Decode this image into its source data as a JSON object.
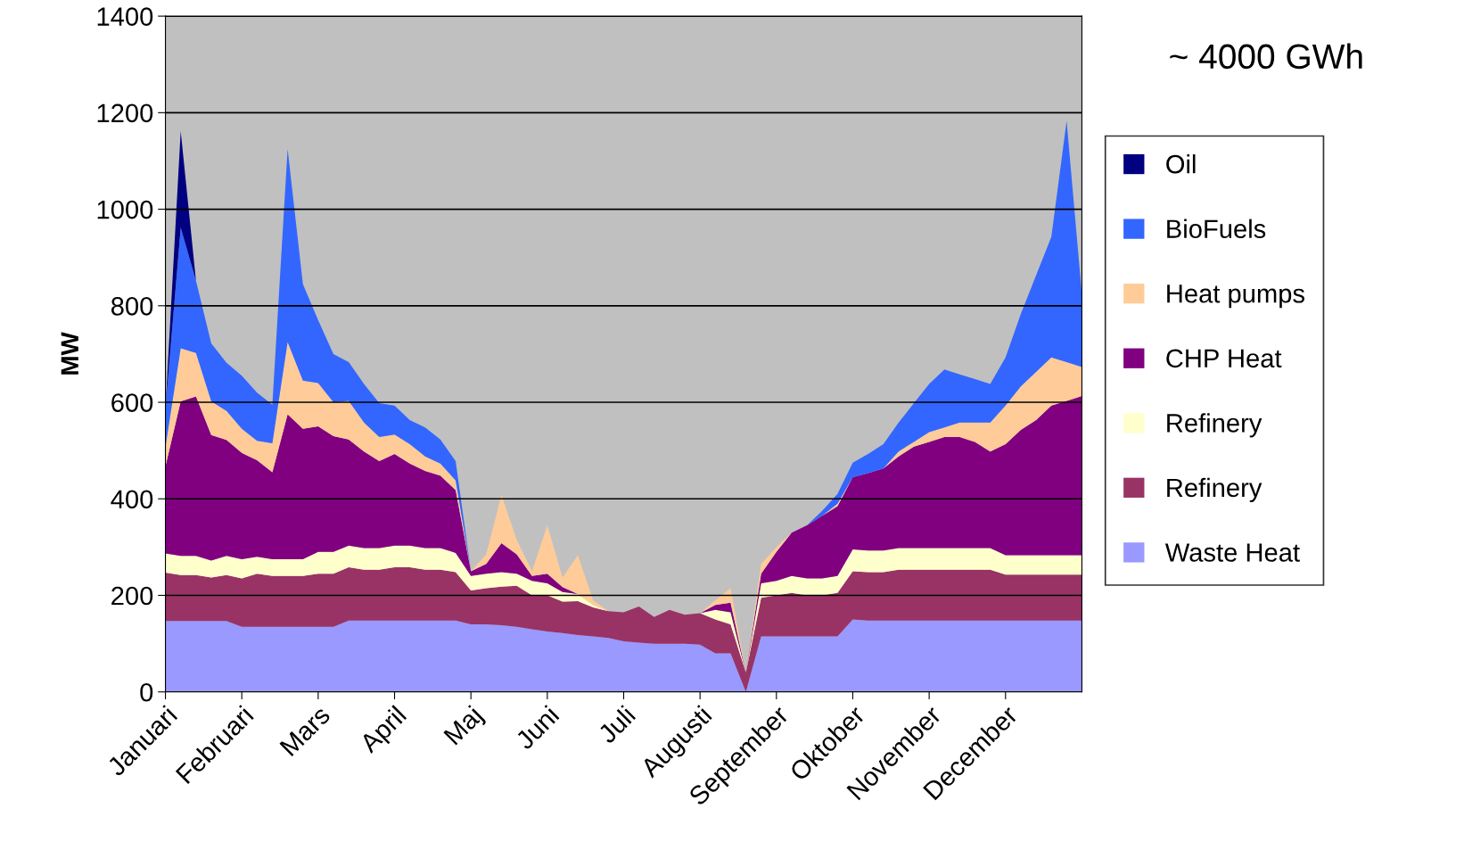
{
  "chart_data": {
    "type": "area",
    "stacked": true,
    "ylabel": "MW",
    "annotations": [
      "~ 4000 GWh"
    ],
    "categories": [
      "Januari",
      null,
      null,
      null,
      null,
      "Februari",
      null,
      null,
      null,
      null,
      "Mars",
      null,
      null,
      null,
      null,
      "April",
      null,
      null,
      null,
      null,
      "Maj",
      null,
      null,
      null,
      null,
      "Juni",
      null,
      null,
      null,
      null,
      "Juli",
      null,
      null,
      null,
      null,
      "Augusti",
      null,
      null,
      null,
      null,
      "September",
      null,
      null,
      null,
      null,
      "Oktober",
      null,
      null,
      null,
      null,
      "November",
      null,
      null,
      null,
      null,
      "December",
      null,
      null,
      null,
      null,
      null
    ],
    "ylim": [
      0,
      1400
    ],
    "yticks": [
      0,
      200,
      400,
      600,
      800,
      1000,
      1200,
      1400
    ],
    "grid": "y",
    "legend": "right",
    "series": [
      {
        "name": "Waste Heat",
        "color": "#9999ff",
        "values": [
          147,
          147,
          147,
          147,
          147,
          135,
          135,
          135,
          135,
          135,
          135,
          135,
          148,
          148,
          148,
          148,
          148,
          148,
          148,
          148,
          140,
          140,
          138,
          135,
          130,
          125,
          122,
          118,
          115,
          112,
          105,
          102,
          100,
          100,
          100,
          98,
          80,
          80,
          0,
          115,
          115,
          115,
          115,
          115,
          115,
          150,
          148,
          148,
          148,
          148,
          148,
          148,
          148,
          148,
          148,
          148,
          148,
          148,
          148,
          148,
          148
        ]
      },
      {
        "name": "Refinery",
        "color": "#993366",
        "values": [
          100,
          95,
          95,
          90,
          95,
          100,
          110,
          105,
          105,
          105,
          110,
          110,
          110,
          105,
          105,
          110,
          110,
          105,
          105,
          100,
          70,
          75,
          80,
          85,
          70,
          75,
          65,
          70,
          60,
          55,
          60,
          75,
          55,
          70,
          60,
          65,
          70,
          60,
          40,
          80,
          85,
          90,
          85,
          85,
          90,
          100,
          100,
          100,
          105,
          105,
          105,
          105,
          105,
          105,
          105,
          95,
          95,
          95,
          95,
          95,
          95
        ]
      },
      {
        "name": "Refinery",
        "color": "#ffffcc",
        "values": [
          40,
          40,
          40,
          35,
          40,
          40,
          35,
          35,
          35,
          35,
          45,
          45,
          45,
          45,
          45,
          45,
          45,
          45,
          45,
          40,
          30,
          30,
          30,
          25,
          30,
          25,
          20,
          15,
          5,
          0,
          0,
          0,
          0,
          0,
          0,
          0,
          20,
          25,
          0,
          30,
          30,
          35,
          35,
          35,
          35,
          45,
          45,
          45,
          45,
          45,
          45,
          45,
          45,
          45,
          45,
          40,
          40,
          40,
          40,
          40,
          40
        ]
      },
      {
        "name": "CHP Heat",
        "color": "#800080",
        "values": [
          180,
          320,
          330,
          260,
          240,
          220,
          200,
          180,
          300,
          270,
          260,
          240,
          220,
          200,
          180,
          190,
          170,
          160,
          150,
          130,
          10,
          20,
          60,
          40,
          10,
          20,
          10,
          0,
          0,
          0,
          0,
          0,
          0,
          0,
          0,
          0,
          10,
          20,
          0,
          20,
          60,
          90,
          110,
          130,
          145,
          150,
          160,
          170,
          190,
          210,
          220,
          230,
          230,
          220,
          200,
          230,
          260,
          280,
          310,
          320,
          330
        ]
      },
      {
        "name": "Heat pumps",
        "color": "#ffcc99",
        "values": [
          40,
          110,
          90,
          70,
          60,
          50,
          40,
          60,
          150,
          100,
          90,
          70,
          80,
          60,
          50,
          40,
          40,
          30,
          25,
          20,
          0,
          20,
          100,
          30,
          10,
          100,
          20,
          80,
          10,
          0,
          0,
          0,
          0,
          0,
          0,
          0,
          10,
          30,
          0,
          20,
          10,
          0,
          0,
          0,
          5,
          0,
          0,
          0,
          10,
          10,
          20,
          20,
          30,
          40,
          60,
          80,
          90,
          100,
          100,
          80,
          60
        ]
      },
      {
        "name": "BioFuels",
        "color": "#3366ff",
        "values": [
          80,
          250,
          150,
          120,
          100,
          110,
          100,
          80,
          400,
          200,
          130,
          100,
          80,
          80,
          70,
          60,
          50,
          60,
          50,
          40,
          0,
          0,
          0,
          0,
          0,
          0,
          0,
          0,
          0,
          0,
          0,
          0,
          0,
          0,
          0,
          0,
          0,
          0,
          0,
          0,
          0,
          0,
          0,
          10,
          20,
          30,
          40,
          50,
          60,
          80,
          100,
          120,
          100,
          90,
          80,
          100,
          150,
          200,
          250,
          500,
          150
        ]
      },
      {
        "name": "Oil",
        "color": "#000080",
        "values": [
          0,
          200,
          0,
          null,
          null,
          null,
          null,
          null,
          null,
          null,
          null,
          null,
          null,
          null,
          null,
          null,
          null,
          null,
          null,
          null,
          null,
          null,
          null,
          null,
          null,
          null,
          null,
          null,
          null,
          null,
          null,
          null,
          null,
          null,
          null,
          null,
          null,
          null,
          null,
          null,
          null,
          null,
          null,
          null,
          null,
          null,
          null,
          null,
          null,
          null,
          null,
          null,
          null,
          null,
          null,
          null,
          null,
          null,
          null,
          null,
          null
        ]
      }
    ]
  }
}
